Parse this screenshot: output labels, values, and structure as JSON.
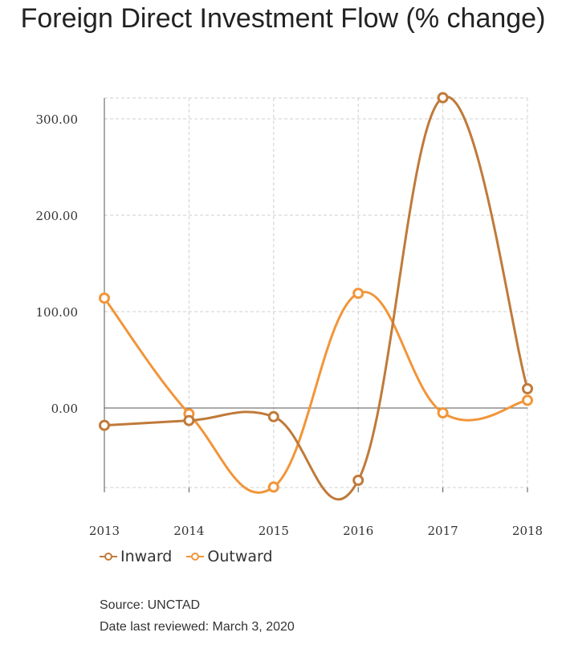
{
  "title": "Foreign Direct Investment Flow (% change)",
  "chart_data": {
    "type": "line",
    "title": "Foreign Direct Investment Flow (% change)",
    "x": [
      "2013",
      "2014",
      "2015",
      "2016",
      "2017",
      "2018"
    ],
    "ylim": [
      -82,
      322
    ],
    "yticks": [
      0,
      100,
      200,
      300
    ],
    "ytick_labels": [
      "0.00",
      "100.00",
      "200.00",
      "300.00"
    ],
    "grid": true,
    "legend_position": "bottom-left",
    "smooth": true,
    "series": [
      {
        "name": "Inward",
        "color": "#c07a3a",
        "values": [
          -18,
          -13,
          -9,
          -75,
          322,
          20
        ]
      },
      {
        "name": "Outward",
        "color": "#f29539",
        "values": [
          114,
          -6,
          -82,
          119,
          -5,
          8
        ]
      }
    ]
  },
  "legend": {
    "inward": "Inward",
    "outward": "Outward"
  },
  "footer": {
    "source": "Source: UNCTAD",
    "reviewed": "Date last reviewed: March 3, 2020"
  }
}
